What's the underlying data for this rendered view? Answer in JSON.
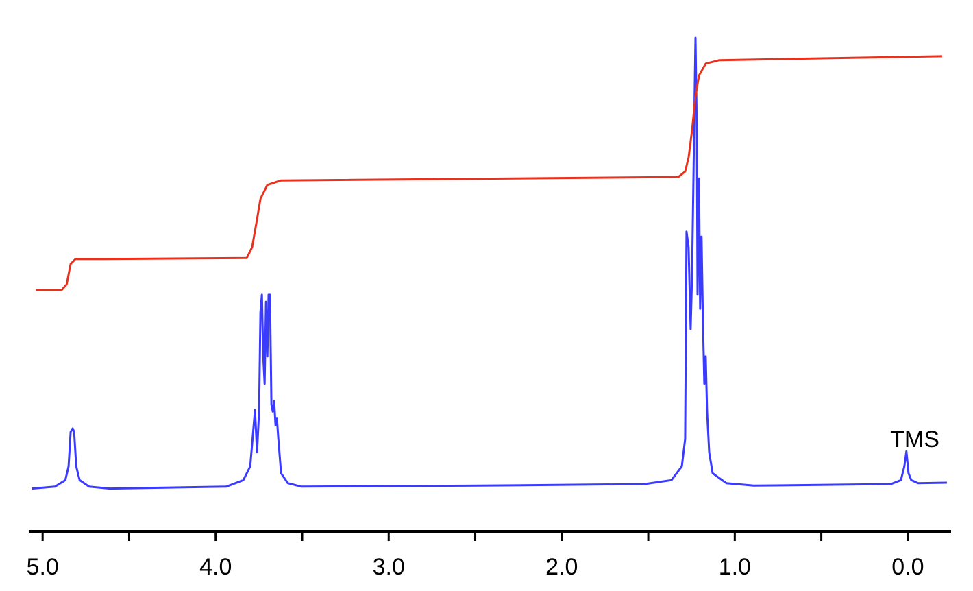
{
  "chart_data": {
    "type": "line",
    "annotations": [
      {
        "text": "TMS"
      }
    ],
    "xlim": [
      5.08,
      -0.25
    ],
    "ylim": [
      0,
      100
    ],
    "xticks": [
      {
        "value": 5,
        "label": "5.0"
      },
      {
        "value": 4,
        "label": "4.0"
      },
      {
        "value": 3,
        "label": "3.0"
      },
      {
        "value": 2,
        "label": "2.0"
      },
      {
        "value": 1,
        "label": "1.0"
      },
      {
        "value": 0,
        "label": "0.0"
      }
    ],
    "xminorticks": [
      4.5,
      3.5,
      2.5,
      1.5,
      0.5
    ],
    "series": [
      {
        "color": "#3b3bff",
        "x": [
          5.063,
          4.929,
          4.869,
          4.85,
          4.838,
          4.826,
          4.818,
          4.806,
          4.786,
          4.731,
          4.612,
          3.939,
          3.84,
          3.8,
          3.773,
          3.761,
          3.749,
          3.741,
          3.733,
          3.725,
          3.717,
          3.709,
          3.701,
          3.694,
          3.686,
          3.678,
          3.67,
          3.662,
          3.654,
          3.646,
          3.638,
          3.622,
          3.583,
          3.504,
          2.474,
          1.524,
          1.366,
          1.306,
          1.287,
          1.279,
          1.267,
          1.255,
          1.247,
          1.239,
          1.231,
          1.227,
          1.219,
          1.215,
          1.207,
          1.2,
          1.192,
          1.184,
          1.176,
          1.168,
          1.16,
          1.148,
          1.128,
          1.049,
          0.891,
          0.099,
          0.04,
          0.02,
          0.008,
          -0.004,
          -0.02,
          -0.059,
          -0.226
        ],
        "values": [
          8.6,
          9.0,
          10.3,
          13.1,
          20.0,
          20.7,
          20.0,
          13.1,
          10.3,
          9.0,
          8.6,
          9.0,
          10.3,
          13.1,
          24.4,
          15.9,
          24.1,
          44.1,
          47.6,
          35.2,
          29.7,
          46.2,
          35.2,
          47.6,
          47.6,
          25.5,
          24.1,
          26.2,
          21.4,
          22.8,
          18.6,
          11.7,
          9.7,
          9.0,
          9.2,
          9.5,
          10.3,
          13.1,
          18.6,
          60.3,
          57.2,
          40.7,
          51.7,
          71.0,
          90.3,
          99.3,
          79.3,
          47.6,
          71.0,
          44.8,
          59.3,
          42.1,
          29.7,
          35.2,
          24.1,
          15.9,
          11.7,
          9.7,
          9.2,
          9.5,
          10.3,
          13.1,
          16.1,
          11.7,
          10.3,
          9.7,
          9.8
        ]
      },
      {
        "color": "#e8321e",
        "x": [
          5.04,
          4.889,
          4.861,
          4.85,
          4.838,
          4.81,
          4.652,
          3.82,
          3.789,
          3.761,
          3.741,
          3.701,
          3.622,
          1.326,
          1.287,
          1.267,
          1.247,
          1.227,
          1.207,
          1.168,
          1.089,
          -0.198
        ],
        "values": [
          48.6,
          48.6,
          49.7,
          51.7,
          53.8,
          54.8,
          54.8,
          55.0,
          57.2,
          62.8,
          66.9,
          69.7,
          70.6,
          71.3,
          72.4,
          75.2,
          80.7,
          87.6,
          91.7,
          94.1,
          94.8,
          95.6
        ]
      }
    ]
  }
}
